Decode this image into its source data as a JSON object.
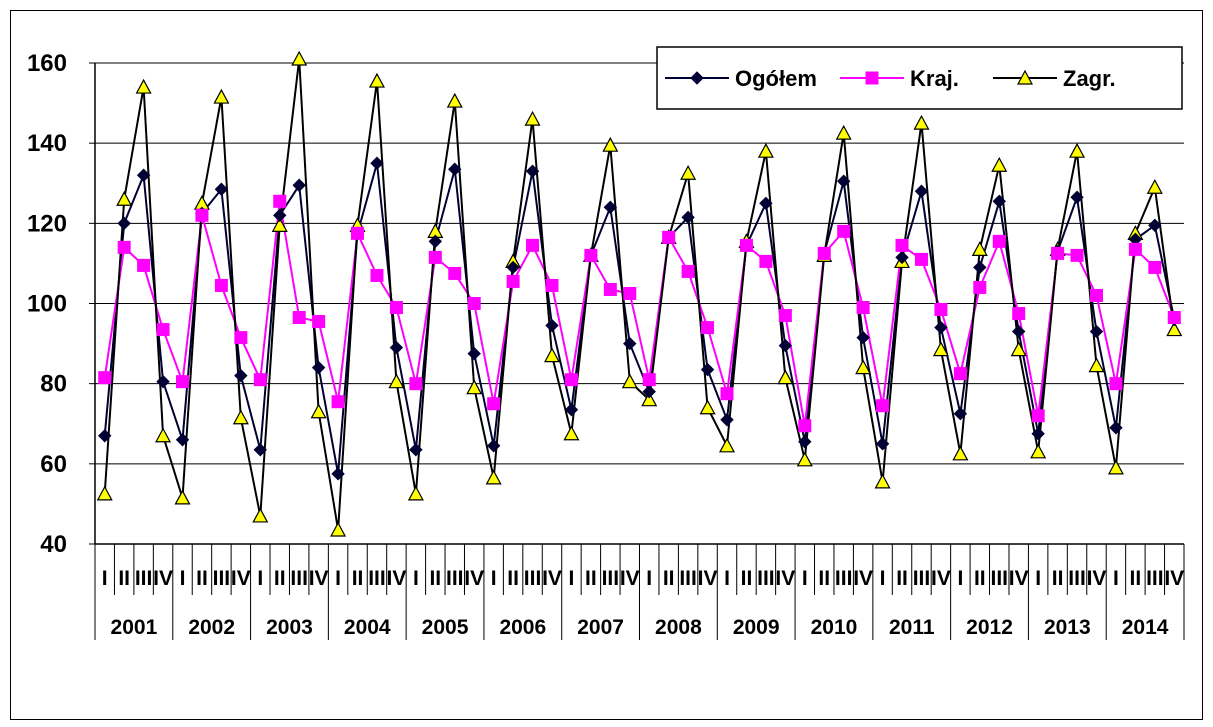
{
  "chart_data": {
    "type": "line",
    "title": "",
    "xlabel": "",
    "ylabel": "",
    "ylim": [
      40,
      160
    ],
    "yticks": [
      40,
      60,
      80,
      100,
      120,
      140,
      160
    ],
    "grid": true,
    "legend_position": "top-right",
    "years": [
      "2001",
      "2002",
      "2003",
      "2004",
      "2005",
      "2006",
      "2007",
      "2008",
      "2009",
      "2010",
      "2011",
      "2012",
      "2013",
      "2014"
    ],
    "quarters": [
      "I",
      "II",
      "III",
      "IV"
    ],
    "series": [
      {
        "name": "Ogółem",
        "color": "#000033",
        "marker": "diamond",
        "values": [
          67,
          120,
          132,
          80.5,
          66,
          122.5,
          128.5,
          82,
          63.5,
          122,
          129.5,
          84,
          57.5,
          117.5,
          135,
          89,
          63.5,
          115.5,
          133.5,
          87.5,
          64.5,
          109,
          133,
          94.5,
          73.5,
          112,
          124,
          90,
          78,
          116.5,
          121.5,
          83.5,
          71,
          114.5,
          125,
          89.5,
          65.5,
          112.5,
          130.5,
          91.5,
          65,
          111.5,
          128,
          94,
          72.5,
          109,
          125.5,
          93,
          67.5,
          113,
          126.5,
          93,
          69,
          116,
          119.5,
          96
        ]
      },
      {
        "name": "Kraj.",
        "color": "#ff00ff",
        "marker": "square",
        "values": [
          81.5,
          114,
          109.5,
          93.5,
          80.5,
          122,
          104.5,
          91.5,
          81,
          125.5,
          96.5,
          95.5,
          75.5,
          117.5,
          107,
          99,
          80,
          111.5,
          107.5,
          100,
          75,
          105.5,
          114.5,
          104.5,
          81,
          112,
          103.5,
          102.5,
          81,
          116.5,
          108,
          94,
          77.5,
          114.5,
          110.5,
          97,
          69.5,
          112.5,
          118,
          99,
          74.5,
          114.5,
          111,
          98.5,
          82.5,
          104,
          115.5,
          97.5,
          72,
          112.5,
          112,
          102,
          80,
          113.5,
          109,
          96.5
        ]
      },
      {
        "name": "Zagr.",
        "color": "#ffff00",
        "marker": "triangle",
        "values": [
          52.5,
          126,
          154,
          67,
          51.5,
          125,
          151.5,
          71.5,
          47,
          119.5,
          161,
          73,
          43.5,
          119.5,
          155.5,
          80.5,
          52.5,
          118,
          150.5,
          79,
          56.5,
          110.5,
          146,
          87,
          67.5,
          112,
          139.5,
          80.5,
          76,
          116.5,
          132.5,
          74,
          64.5,
          115.5,
          138,
          81.5,
          61,
          112,
          142.5,
          84,
          55.5,
          110.5,
          145,
          88.5,
          62.5,
          113.5,
          134.5,
          88.5,
          63,
          113.5,
          138,
          84.5,
          59,
          117.5,
          129,
          93.5
        ]
      }
    ]
  }
}
